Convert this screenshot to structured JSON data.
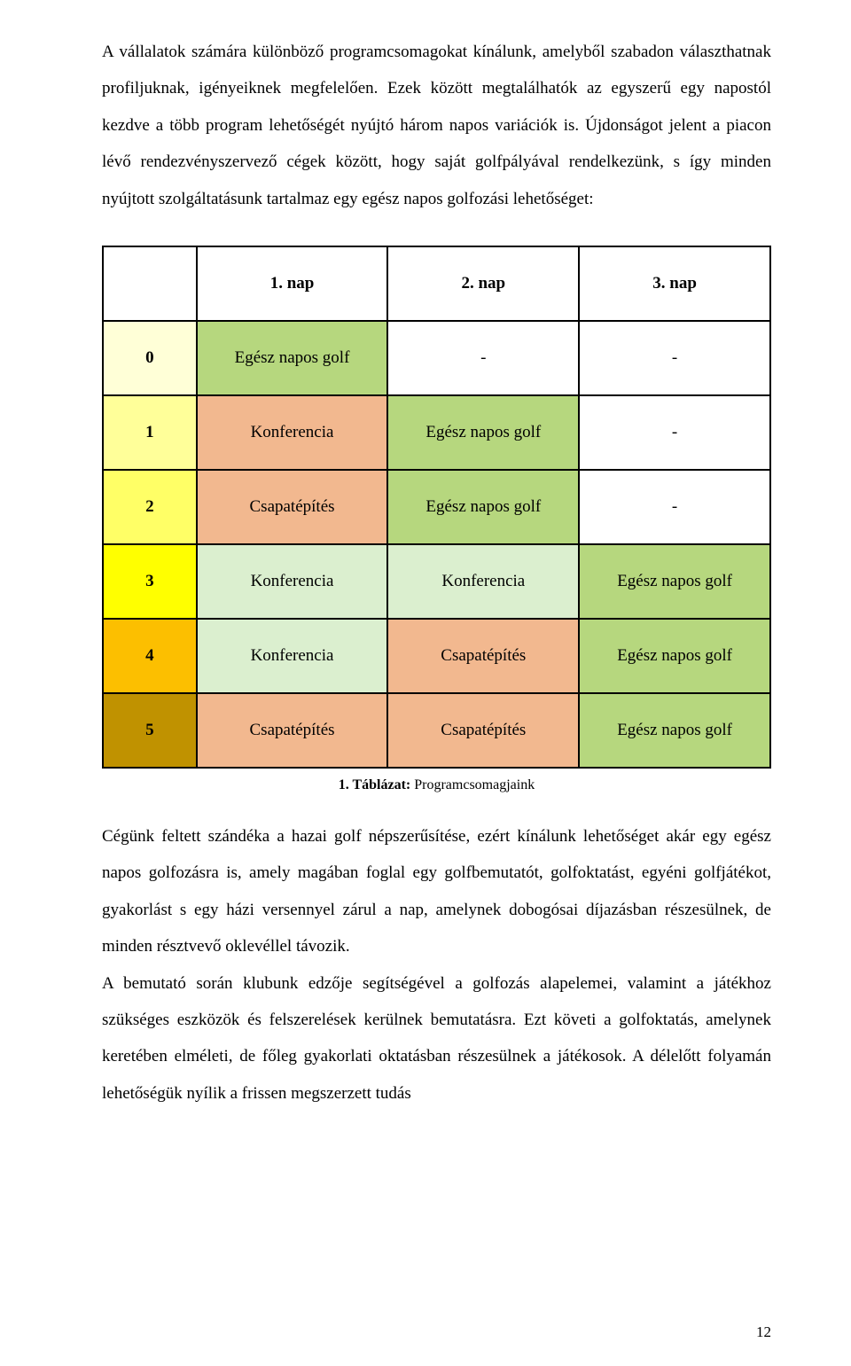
{
  "paragraphs": {
    "p1": "A vállalatok számára különböző programcsomagokat kínálunk, amelyből szabadon választhatnak profiljuknak, igényeiknek megfelelően. Ezek között megtalálhatók az egyszerű egy napostól kezdve a több program lehetőségét nyújtó három napos variációk is. Újdonságot jelent a piacon lévő rendezvényszervező cégek között, hogy saját golfpályával rendelkezünk, s így minden nyújtott szolgáltatásunk tartalmaz egy egész napos golfozási lehetőséget:",
    "p2": "Cégünk feltett szándéka a hazai golf népszerűsítése, ezért kínálunk lehetőséget akár egy egész napos golfozásra is, amely magában foglal egy golfbemutatót, golfoktatást, egyéni golfjátékot, gyakorlást s egy házi versennyel zárul a nap, amelynek dobogósai díjazásban részesülnek, de minden résztvevő oklevéllel távozik.",
    "p3": "A bemutató során klubunk edzője segítségével a golfozás alapelemei, valamint a játékhoz szükséges eszközök és felszerelések kerülnek bemutatásra. Ezt követi a golfoktatás, amelynek keretében elméleti, de főleg gyakorlati oktatásban részesülnek a játékosok. A délelőtt folyamán lehetőségük nyílik a frissen megszerzett tudás"
  },
  "table": {
    "headers": [
      "",
      "1. nap",
      "2. nap",
      "3. nap"
    ],
    "header_bg": "#ffffff",
    "rows": [
      {
        "label": "0",
        "label_bg": "#ffffd7",
        "cells": [
          {
            "text": "Egész napos golf",
            "bg": "#b6d77e"
          },
          {
            "text": "-",
            "bg": "#ffffff"
          },
          {
            "text": "-",
            "bg": "#ffffff"
          }
        ]
      },
      {
        "label": "1",
        "label_bg": "#ffff99",
        "cells": [
          {
            "text": "Konferencia",
            "bg": "#f2b88f"
          },
          {
            "text": "Egész napos golf",
            "bg": "#b6d77e"
          },
          {
            "text": "-",
            "bg": "#ffffff"
          }
        ]
      },
      {
        "label": "2",
        "label_bg": "#ffff66",
        "cells": [
          {
            "text": "Csapatépítés",
            "bg": "#f2b88f"
          },
          {
            "text": "Egész napos golf",
            "bg": "#b6d77e"
          },
          {
            "text": "-",
            "bg": "#ffffff"
          }
        ]
      },
      {
        "label": "3",
        "label_bg": "#ffff00",
        "cells": [
          {
            "text": "Konferencia",
            "bg": "#dbefcf"
          },
          {
            "text": "Konferencia",
            "bg": "#dbefcf"
          },
          {
            "text": "Egész napos golf",
            "bg": "#b6d77e"
          }
        ]
      },
      {
        "label": "4",
        "label_bg": "#fcbf00",
        "cells": [
          {
            "text": "Konferencia",
            "bg": "#dbefcf"
          },
          {
            "text": "Csapatépítés",
            "bg": "#f2b88f"
          },
          {
            "text": "Egész napos golf",
            "bg": "#b6d77e"
          }
        ]
      },
      {
        "label": "5",
        "label_bg": "#c09200",
        "cells": [
          {
            "text": "Csapatépítés",
            "bg": "#f2b88f"
          },
          {
            "text": "Csapatépítés",
            "bg": "#f2b88f"
          },
          {
            "text": "Egész napos golf",
            "bg": "#b6d77e"
          }
        ]
      }
    ]
  },
  "caption_bold": "1. Táblázat:",
  "caption_rest": " Programcsomagjaink",
  "page_number": "12"
}
